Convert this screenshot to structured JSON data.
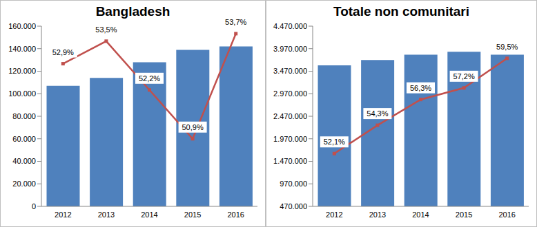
{
  "chart_data": [
    {
      "type": "bar",
      "title": "Bangladesh",
      "categories": [
        "2012",
        "2013",
        "2014",
        "2015",
        "2016"
      ],
      "series": [
        {
          "type": "bar",
          "color": "#4f81bd",
          "values": [
            107000,
            114000,
            128000,
            139000,
            142000
          ]
        },
        {
          "type": "line",
          "color": "#c0504d",
          "marker": "square",
          "axis": "y2",
          "data_labels": true,
          "values": [
            52.9,
            53.5,
            52.2,
            50.9,
            53.7
          ],
          "value_labels": [
            "52,9%",
            "53,5%",
            "52,2%",
            "50,9%",
            "53,7%"
          ]
        }
      ],
      "ylim": [
        0,
        160000
      ],
      "yticks": [
        0,
        {
          "value": 20000,
          "label": "20.000"
        },
        {
          "value": 40000,
          "label": "40.000"
        },
        {
          "value": 60000,
          "label": "60.000"
        },
        {
          "value": 80000,
          "label": "80.000"
        },
        {
          "value": 100000,
          "label": "100.000"
        },
        {
          "value": 120000,
          "label": "120.000"
        },
        {
          "value": 140000,
          "label": "140.000"
        },
        {
          "value": 160000,
          "label": "160.000"
        }
      ],
      "y2lim": [
        49.1,
        53.9
      ],
      "grid": false
    },
    {
      "type": "bar",
      "title": "Totale non comunitari",
      "categories": [
        "2012",
        "2013",
        "2014",
        "2015",
        "2016"
      ],
      "series": [
        {
          "type": "bar",
          "color": "#4f81bd",
          "values": [
            3600000,
            3720000,
            3835000,
            3900000,
            3835000
          ]
        },
        {
          "type": "line",
          "color": "#c0504d",
          "marker": "square",
          "axis": "y2",
          "data_labels": true,
          "values": [
            52.1,
            54.3,
            56.3,
            57.2,
            59.5
          ],
          "value_labels": [
            "52,1%",
            "54,3%",
            "56,3%",
            "57,2%",
            "59,5%"
          ]
        }
      ],
      "ylim": [
        470000,
        4470000
      ],
      "yticks": [
        {
          "value": 470000,
          "label": "470.000"
        },
        {
          "value": 970000,
          "label": "970.000"
        },
        {
          "value": 1470000,
          "label": "1.470.000"
        },
        {
          "value": 1970000,
          "label": "1.970.000"
        },
        {
          "value": 2470000,
          "label": "2.470.000"
        },
        {
          "value": 2970000,
          "label": "2.970.000"
        },
        {
          "value": 3470000,
          "label": "3.470.000"
        },
        {
          "value": 3970000,
          "label": "3.970.000"
        },
        {
          "value": 4470000,
          "label": "4.470.000"
        }
      ],
      "y2lim": [
        48,
        62
      ],
      "grid": false
    }
  ]
}
